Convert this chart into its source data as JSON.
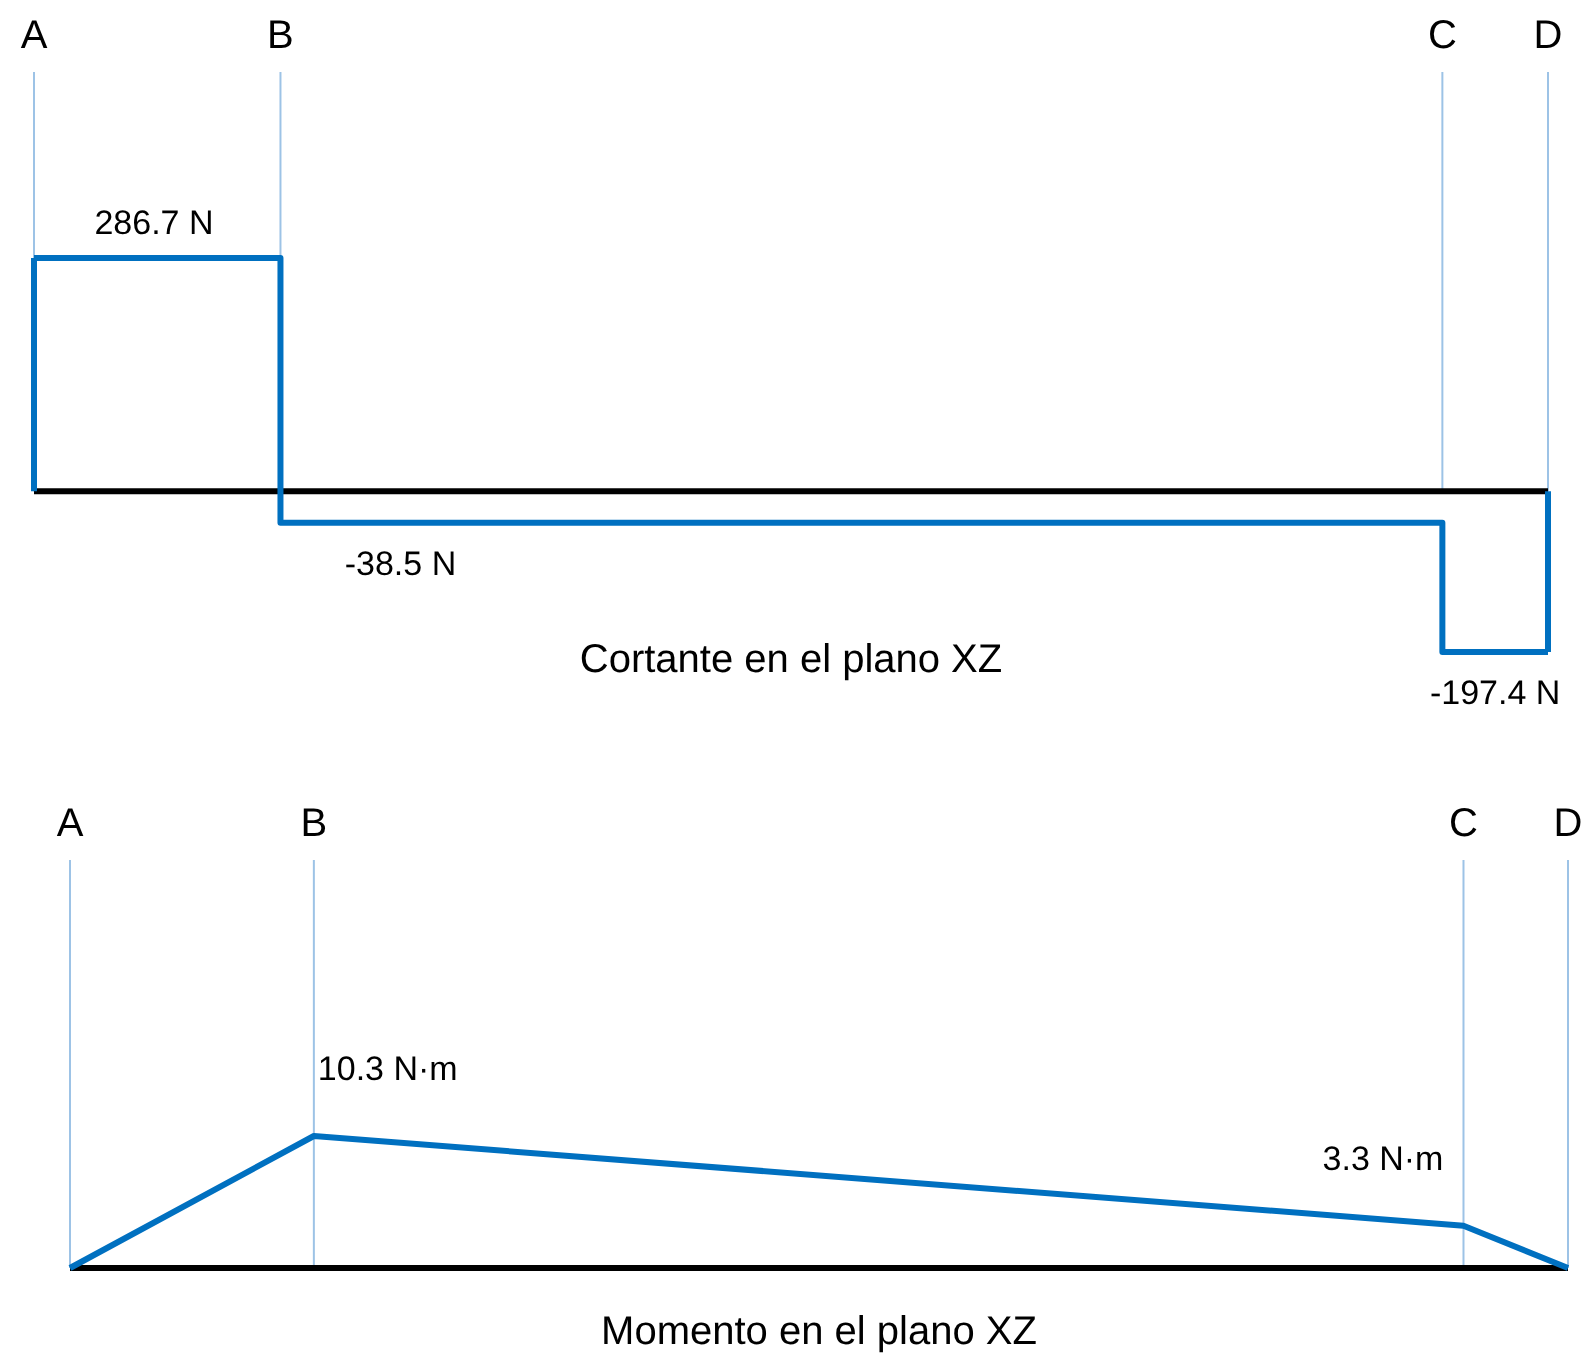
{
  "chart_data": [
    {
      "type": "step",
      "title": "Cortante en el plano XZ",
      "grid": "x",
      "categories": [
        "A",
        null,
        null,
        null,
        null,
        null,
        null,
        "B",
        null,
        null,
        null,
        null,
        null,
        null,
        null,
        null,
        null,
        null,
        null,
        null,
        null,
        null,
        null,
        null,
        null,
        null,
        null,
        null,
        null,
        null,
        null,
        null,
        null,
        null,
        null,
        null,
        null,
        null,
        null,
        null,
        "C",
        null,
        null,
        "D"
      ],
      "series": [
        {
          "color": "#0070c0",
          "values": [
            286.7,
            null,
            null,
            null,
            null,
            null,
            null,
            -38.5,
            null,
            null,
            null,
            null,
            null,
            null,
            null,
            null,
            null,
            null,
            null,
            null,
            null,
            null,
            null,
            null,
            null,
            null,
            null,
            null,
            null,
            null,
            null,
            null,
            null,
            null,
            null,
            null,
            null,
            null,
            null,
            null,
            -197.4,
            null,
            null,
            -197.4
          ],
          "value_labels": [
            "286.7 N",
            null,
            null,
            null,
            null,
            null,
            null,
            "-38.5 N",
            null,
            null,
            null,
            null,
            null,
            null,
            null,
            null,
            null,
            null,
            null,
            null,
            null,
            null,
            null,
            null,
            null,
            null,
            null,
            null,
            null,
            null,
            null,
            null,
            null,
            null,
            null,
            null,
            null,
            null,
            null,
            null,
            "-197.4 N",
            null,
            null,
            null
          ]
        }
      ]
    },
    {
      "type": "line",
      "title": "Momento en el plano XZ",
      "grid": "x",
      "categories": [
        "A",
        null,
        null,
        null,
        null,
        null,
        null,
        "B",
        null,
        null,
        null,
        null,
        null,
        null,
        null,
        null,
        null,
        null,
        null,
        null,
        null,
        null,
        null,
        null,
        null,
        null,
        null,
        null,
        null,
        null,
        null,
        null,
        null,
        null,
        null,
        null,
        null,
        null,
        null,
        null,
        "C",
        null,
        null,
        "D"
      ],
      "series": [
        {
          "color": "#0070c0",
          "values": [
            0,
            null,
            null,
            null,
            null,
            null,
            null,
            10.3,
            null,
            null,
            null,
            null,
            null,
            null,
            null,
            null,
            null,
            null,
            null,
            null,
            null,
            null,
            null,
            null,
            null,
            null,
            null,
            null,
            null,
            null,
            null,
            null,
            null,
            null,
            null,
            null,
            null,
            null,
            null,
            null,
            3.3,
            null,
            null,
            0
          ],
          "value_labels": [
            null,
            null,
            null,
            null,
            null,
            null,
            null,
            "10.3 N·m",
            null,
            null,
            null,
            null,
            null,
            null,
            null,
            null,
            null,
            null,
            null,
            null,
            null,
            null,
            null,
            null,
            null,
            null,
            null,
            null,
            null,
            null,
            null,
            null,
            null,
            null,
            null,
            null,
            null,
            null,
            null,
            null,
            "3.3 N·m",
            null,
            null,
            null
          ]
        }
      ]
    }
  ]
}
